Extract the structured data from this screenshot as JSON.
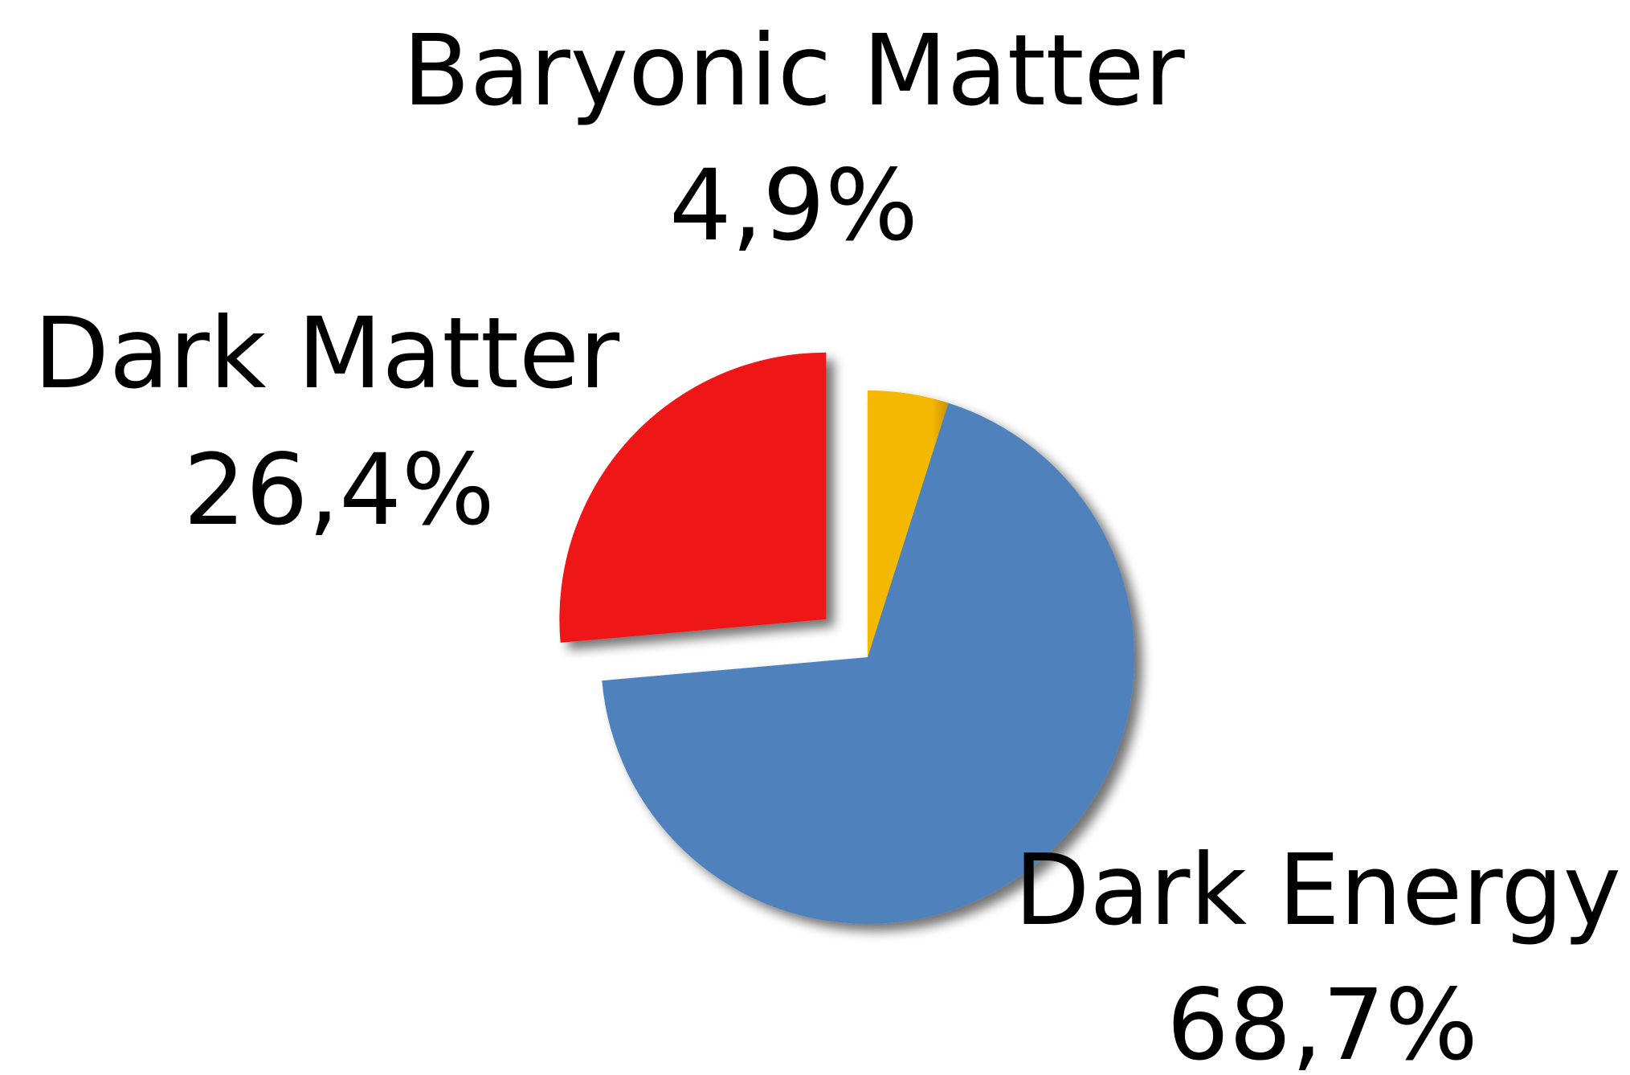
{
  "chart_data": {
    "type": "pie",
    "title": "",
    "slices": [
      {
        "name": "Baryonic Matter",
        "value": 4.9,
        "label_value": "4,9%",
        "color": "#f5b800",
        "exploded": false
      },
      {
        "name": "Dark Energy",
        "value": 68.7,
        "label_value": "68,7%",
        "color": "#4f81bd",
        "exploded": false
      },
      {
        "name": "Dark Matter",
        "value": 26.4,
        "label_value": "26,4%",
        "color": "#ee1818",
        "exploded": true
      }
    ],
    "start_angle": "12 o'clock",
    "direction": "clockwise",
    "shadow": true,
    "legend": "none"
  }
}
